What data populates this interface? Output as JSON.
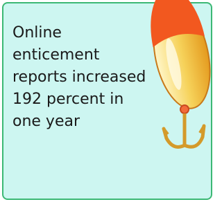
{
  "lines": [
    "Online",
    "enticement",
    "reports increased",
    "192 percent in",
    "one year"
  ]
}
